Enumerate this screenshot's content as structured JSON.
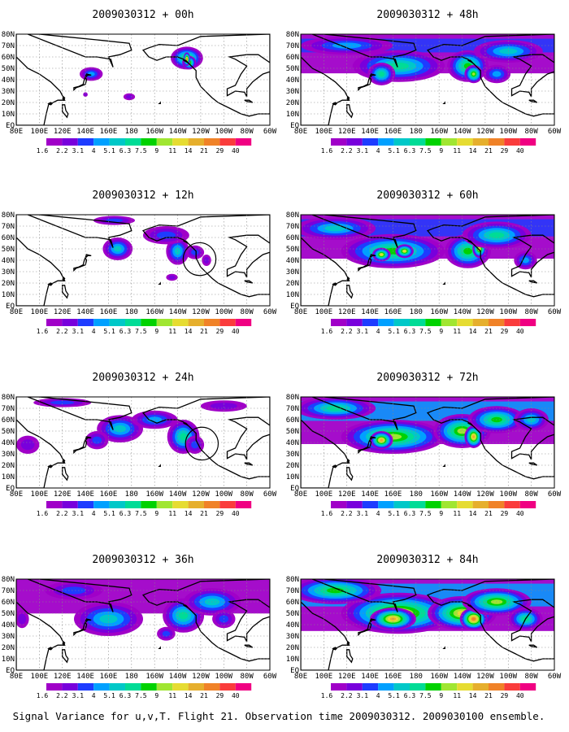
{
  "colorbar": {
    "labels": [
      "1.6",
      "2.2",
      "3.1",
      "4",
      "5.1",
      "6.3",
      "7.5",
      "9",
      "11",
      "14",
      "21",
      "29",
      "40"
    ],
    "colors": [
      "#a000c8",
      "#7800dc",
      "#1e3cff",
      "#00a0ff",
      "#00c8c8",
      "#00dc96",
      "#00d200",
      "#a0e632",
      "#e6dc32",
      "#e6af2d",
      "#f08228",
      "#fa3c3c",
      "#f00082"
    ]
  },
  "axes": {
    "lon_labels": [
      "80E",
      "100E",
      "120E",
      "140E",
      "160E",
      "180",
      "160W",
      "140W",
      "120W",
      "100W",
      "80W",
      "60W"
    ],
    "lat_labels": [
      "80N",
      "70N",
      "60N",
      "50N",
      "40N",
      "30N",
      "20N",
      "10N",
      "EQ"
    ]
  },
  "caption": "Signal Variance for u,v,T. Flight 21. Observation time 2009030312. 2009030100 ensemble.",
  "panels": [
    {
      "id": "00h",
      "title": "2009030312 + 00h",
      "level": 0.05,
      "blobs": [
        [
          145,
          45,
          10,
          6,
          2.2
        ],
        [
          -132,
          59,
          14,
          10,
          3.6
        ],
        [
          -130,
          55,
          6,
          6,
          4.2
        ],
        [
          -132,
          58,
          3,
          6,
          6
        ],
        [
          178,
          25,
          5,
          3,
          1.3
        ],
        [
          140,
          27,
          2,
          2,
          1.2
        ]
      ],
      "circle": null
    },
    {
      "id": "12h",
      "title": "2009030312 + 12h",
      "level": 0.1,
      "blobs": [
        [
          168,
          50,
          13,
          10,
          2.6
        ],
        [
          -140,
          48,
          10,
          12,
          2.8
        ],
        [
          -150,
          62,
          20,
          8,
          1.8
        ],
        [
          165,
          75,
          18,
          4,
          1.4
        ],
        [
          -125,
          47,
          8,
          6,
          1.6
        ],
        [
          -115,
          40,
          4,
          5,
          1.2
        ],
        [
          -145,
          25,
          5,
          3,
          1.1
        ]
      ],
      "circle": [
        -121,
        41,
        6
      ]
    },
    {
      "id": "24h",
      "title": "2009030312 + 24h",
      "level": 0.25,
      "blobs": [
        [
          170,
          52,
          20,
          12,
          2.6
        ],
        [
          -135,
          45,
          14,
          15,
          2.9
        ],
        [
          -160,
          60,
          20,
          8,
          2
        ],
        [
          150,
          42,
          10,
          8,
          1.8
        ],
        [
          120,
          75,
          25,
          4,
          1.4
        ],
        [
          90,
          38,
          10,
          8,
          1.3
        ],
        [
          -125,
          38,
          8,
          8,
          1.5
        ],
        [
          -100,
          72,
          20,
          5,
          1.2
        ]
      ],
      "circle": [
        -119,
        39,
        6
      ]
    },
    {
      "id": "36h",
      "title": "2009030312 + 36h",
      "level": 0.45,
      "blobs": [
        [
          160,
          45,
          30,
          15,
          2.8
        ],
        [
          -135,
          48,
          18,
          15,
          3
        ],
        [
          -110,
          60,
          25,
          12,
          2.4
        ],
        [
          130,
          70,
          25,
          8,
          1.8
        ],
        [
          -150,
          32,
          8,
          6,
          1.6
        ],
        [
          -100,
          45,
          10,
          8,
          1.6
        ],
        [
          85,
          45,
          6,
          8,
          1.3
        ]
      ],
      "circle": null
    },
    {
      "id": "48h",
      "title": "2009030312 + 48h",
      "level": 0.6,
      "blobs": [
        [
          165,
          52,
          40,
          14,
          3
        ],
        [
          -135,
          52,
          18,
          14,
          3.6
        ],
        [
          -130,
          45,
          8,
          8,
          4.4
        ],
        [
          150,
          45,
          12,
          10,
          3.2
        ],
        [
          -100,
          65,
          30,
          10,
          2.4
        ],
        [
          120,
          70,
          40,
          8,
          2.3
        ],
        [
          -110,
          45,
          12,
          8,
          2.2
        ]
      ],
      "circle": null
    },
    {
      "id": "60h",
      "title": "2009030312 + 60h",
      "level": 0.75,
      "blobs": [
        [
          160,
          48,
          45,
          15,
          3.6
        ],
        [
          150,
          45,
          8,
          6,
          4.8
        ],
        [
          170,
          48,
          8,
          6,
          4.6
        ],
        [
          -135,
          48,
          20,
          15,
          3.6
        ],
        [
          -125,
          50,
          6,
          8,
          4.9
        ],
        [
          -110,
          62,
          30,
          12,
          3
        ],
        [
          110,
          68,
          35,
          10,
          2.5
        ],
        [
          -85,
          40,
          10,
          8,
          2.2
        ]
      ],
      "circle": null
    },
    {
      "id": "72h",
      "title": "2009030312 + 72h",
      "level": 0.85,
      "blobs": [
        [
          160,
          45,
          45,
          15,
          4
        ],
        [
          150,
          42,
          10,
          8,
          5.3
        ],
        [
          -140,
          50,
          25,
          15,
          4.2
        ],
        [
          -130,
          45,
          8,
          10,
          5.4
        ],
        [
          -110,
          60,
          25,
          12,
          3.6
        ],
        [
          110,
          70,
          35,
          10,
          3
        ],
        [
          -80,
          60,
          15,
          10,
          2.6
        ]
      ],
      "circle": null
    },
    {
      "id": "84h",
      "title": "2009030312 + 84h",
      "level": 1.0,
      "blobs": [
        [
          165,
          50,
          50,
          18,
          4.6
        ],
        [
          160,
          45,
          20,
          10,
          5.5
        ],
        [
          -140,
          50,
          30,
          15,
          4.8
        ],
        [
          -130,
          45,
          12,
          10,
          5.7
        ],
        [
          -110,
          60,
          30,
          12,
          4
        ],
        [
          110,
          70,
          40,
          12,
          3.6
        ],
        [
          -85,
          45,
          15,
          10,
          3.2
        ]
      ],
      "circle": null
    }
  ]
}
